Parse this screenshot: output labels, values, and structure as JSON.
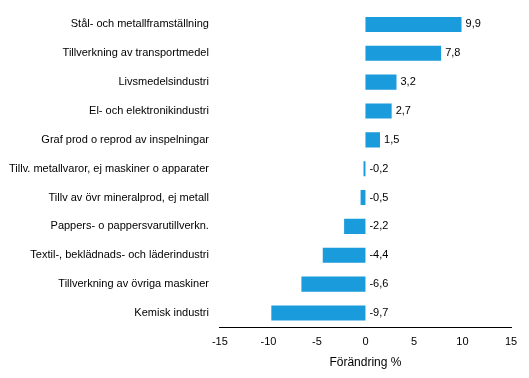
{
  "chart_data": {
    "type": "bar",
    "orientation": "horizontal",
    "categories": [
      "Stål- och metallframställning",
      "Tillverkning av transportmedel",
      "Livsmedelsindustri",
      "El- och elektronikindustri",
      "Graf prod o reprod av inspelningar",
      "Tillv. metallvaror, ej maskiner o apparater",
      "Tillv av övr mineralprod, ej metall",
      "Pappers- o pappersvarutillverkn.",
      "Textil-, beklädnads- och läderindustri",
      "Tillverkning av övriga maskiner",
      "Kemisk industri"
    ],
    "values": [
      9.9,
      7.8,
      3.2,
      2.7,
      1.5,
      -0.2,
      -0.5,
      -2.2,
      -4.4,
      -6.6,
      -9.7
    ],
    "value_labels": [
      "9,9",
      "7,8",
      "3,2",
      "2,7",
      "1,5",
      "-0,2",
      "-0,5",
      "-2,2",
      "-4,4",
      "-6,6",
      "-9,7"
    ],
    "color": "#1a9bdb",
    "xlabel": "Förändring %",
    "xlim": [
      -15,
      15
    ],
    "xticks": [
      -15,
      -10,
      -5,
      0,
      5,
      10,
      15
    ],
    "grid": false,
    "data_labels": true
  }
}
